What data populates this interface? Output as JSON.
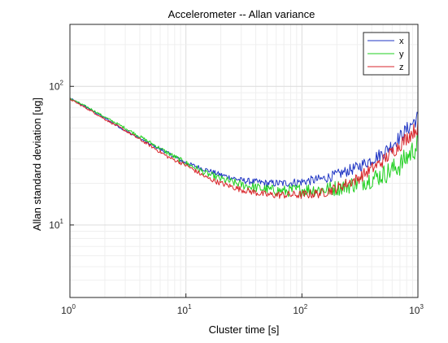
{
  "chart_data": {
    "type": "line",
    "title": "Accelerometer -- Allan variance",
    "xlabel": "Cluster time [s]",
    "ylabel": "Allan standard deviation [ug]",
    "xscale": "log",
    "yscale": "log",
    "xlim": [
      1,
      1000
    ],
    "ylim": [
      3,
      280
    ],
    "grid": "on (major and minor)",
    "legend_position": "top-right",
    "x_ticks": [
      {
        "base": "10",
        "exp": "0"
      },
      {
        "base": "10",
        "exp": "1"
      },
      {
        "base": "10",
        "exp": "2"
      },
      {
        "base": "10",
        "exp": "3"
      }
    ],
    "y_ticks": [
      {
        "base": "10",
        "exp": "1"
      },
      {
        "base": "10",
        "exp": "2"
      }
    ],
    "x": [
      1,
      1.5,
      2,
      3,
      5,
      7,
      10,
      15,
      20,
      30,
      50,
      70,
      100,
      150,
      200,
      300,
      500,
      700,
      1000
    ],
    "series": [
      {
        "name": "x",
        "color": "#1f35c4",
        "noise": 0.05,
        "values": [
          82,
          68,
          59,
          48,
          38,
          33,
          28,
          25,
          23,
          21,
          20,
          20,
          20.5,
          21.5,
          23,
          26,
          33,
          43,
          60
        ]
      },
      {
        "name": "y",
        "color": "#1fcf1f",
        "noise": 0.08,
        "values": [
          82,
          69,
          60,
          50,
          39,
          33,
          28,
          23.5,
          21.5,
          19.5,
          18,
          17.5,
          18,
          18,
          18.5,
          20,
          23,
          27,
          38
        ]
      },
      {
        "name": "z",
        "color": "#d9262b",
        "noise": 0.05,
        "values": [
          81,
          67,
          58,
          48,
          37,
          31,
          27,
          22,
          20,
          18,
          16.5,
          16.5,
          16.5,
          17,
          18.5,
          21.5,
          29,
          38,
          51
        ]
      }
    ]
  }
}
